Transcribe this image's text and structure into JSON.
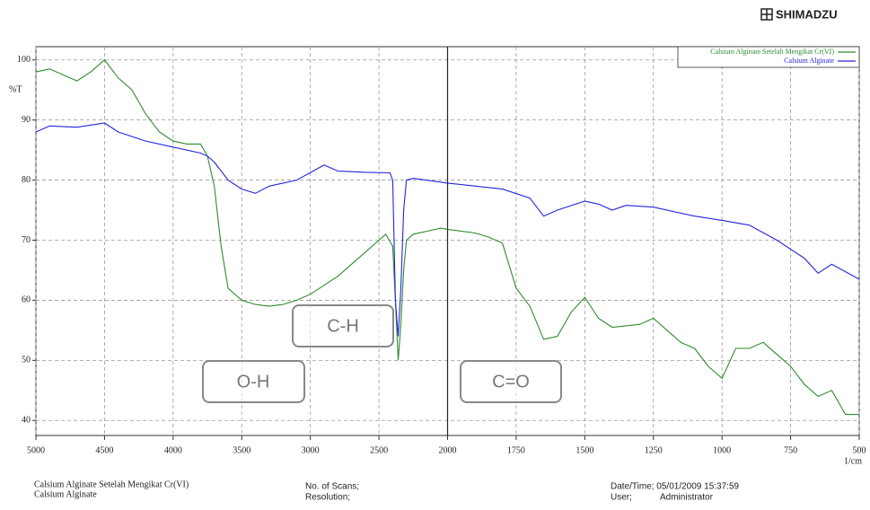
{
  "brand": "SHIMADZU",
  "chart_data": {
    "type": "line",
    "xlabel": "1/cm",
    "ylabel": "%T",
    "xlim": [
      5000,
      500
    ],
    "ylim": [
      37.5,
      102.2
    ],
    "xticks": [
      5000,
      4500,
      4000,
      3500,
      3000,
      2500,
      2000,
      1750,
      1500,
      1250,
      1000,
      750,
      500
    ],
    "yticks": [
      40,
      50,
      60,
      70,
      80,
      90,
      100
    ],
    "grid": true,
    "vline": 2000,
    "legend": "top-right",
    "annotations": [
      "C-H",
      "O-H",
      "C=O"
    ],
    "series": [
      {
        "name": "Calsium Alginate Setelah Mengikat Cr(VI)",
        "color": "#2e8b2e",
        "x": [
          5000,
          4900,
          4800,
          4700,
          4600,
          4500,
          4400,
          4300,
          4200,
          4100,
          4000,
          3900,
          3800,
          3750,
          3700,
          3650,
          3600,
          3500,
          3400,
          3300,
          3200,
          3100,
          3000,
          2900,
          2800,
          2700,
          2600,
          2500,
          2450,
          2400,
          2380,
          2360,
          2340,
          2320,
          2300,
          2250,
          2150,
          2050,
          2000,
          1900,
          1850,
          1800,
          1750,
          1700,
          1650,
          1600,
          1550,
          1500,
          1450,
          1400,
          1300,
          1250,
          1200,
          1150,
          1100,
          1050,
          1000,
          950,
          900,
          850,
          800,
          750,
          700,
          650,
          600,
          550,
          500
        ],
        "values": [
          98,
          98.5,
          97.5,
          96.5,
          98,
          100,
          97,
          95,
          91,
          88,
          86.5,
          86,
          86,
          84,
          79,
          69,
          62,
          60,
          59.3,
          59,
          59.3,
          60,
          61,
          62.5,
          64,
          66,
          68,
          70,
          71,
          69,
          60,
          50,
          56,
          65,
          70,
          71,
          71.5,
          72,
          71.8,
          71.2,
          70.5,
          69.5,
          62,
          59,
          53.5,
          54,
          58,
          60.5,
          57,
          55.5,
          56,
          57,
          55,
          53,
          52,
          49,
          47,
          52,
          52,
          53,
          51,
          49,
          46,
          44,
          45,
          41,
          41
        ]
      },
      {
        "name": "Calsium Alginate",
        "color": "#2424e0",
        "x": [
          5000,
          4900,
          4700,
          4500,
          4400,
          4200,
          4000,
          3800,
          3750,
          3700,
          3600,
          3500,
          3400,
          3300,
          3100,
          2900,
          2800,
          2600,
          2420,
          2400,
          2380,
          2360,
          2340,
          2320,
          2300,
          2250,
          2000,
          1800,
          1700,
          1650,
          1600,
          1500,
          1450,
          1400,
          1350,
          1250,
          1100,
          1000,
          900,
          800,
          700,
          650,
          600,
          500
        ],
        "values": [
          88,
          89,
          88.8,
          89.5,
          88,
          86.5,
          85.5,
          84.5,
          84,
          83,
          80,
          78.5,
          77.8,
          79,
          80,
          82.5,
          81.5,
          81.3,
          81.2,
          80,
          60,
          54,
          62,
          75,
          80,
          80.3,
          79.5,
          78.5,
          77,
          74,
          75,
          76.5,
          76,
          75,
          75.8,
          75.5,
          74,
          73.3,
          72.5,
          70,
          67,
          64.5,
          66,
          63.5
        ]
      }
    ]
  },
  "footer": {
    "scans": "No. of Scans;",
    "resolution": "Resolution;",
    "datetime": "Date/Time; 05/01/2009 15:37:59",
    "user": "User;",
    "user_name": "Administrator"
  }
}
